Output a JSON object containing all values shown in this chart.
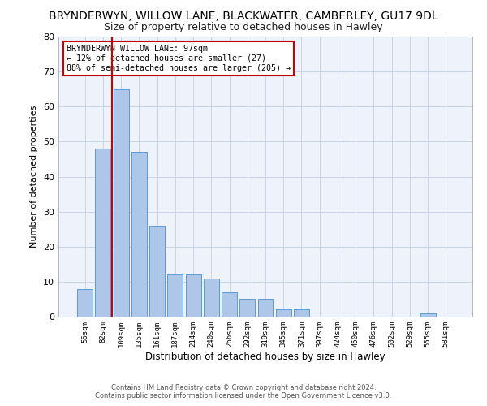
{
  "title": "BRYNDERWYN, WILLOW LANE, BLACKWATER, CAMBERLEY, GU17 9DL",
  "subtitle": "Size of property relative to detached houses in Hawley",
  "xlabel": "Distribution of detached houses by size in Hawley",
  "ylabel": "Number of detached properties",
  "bar_color": "#aec6e8",
  "bar_edge_color": "#5b9bd5",
  "grid_color": "#c8d4e8",
  "annotation_line_color": "#cc0000",
  "annotation_text_line1": "BRYNDERWYN WILLOW LANE: 97sqm",
  "annotation_text_line2": "← 12% of detached houses are smaller (27)",
  "annotation_text_line3": "88% of semi-detached houses are larger (205) →",
  "footer_line1": "Contains HM Land Registry data © Crown copyright and database right 2024.",
  "footer_line2": "Contains public sector information licensed under the Open Government Licence v3.0.",
  "categories": [
    "56sqm",
    "82sqm",
    "109sqm",
    "135sqm",
    "161sqm",
    "187sqm",
    "214sqm",
    "240sqm",
    "266sqm",
    "292sqm",
    "319sqm",
    "345sqm",
    "371sqm",
    "397sqm",
    "424sqm",
    "450sqm",
    "476sqm",
    "502sqm",
    "529sqm",
    "555sqm",
    "581sqm"
  ],
  "values": [
    8,
    48,
    65,
    47,
    26,
    12,
    12,
    11,
    7,
    5,
    5,
    2,
    2,
    0,
    0,
    0,
    0,
    0,
    0,
    1,
    0
  ],
  "ylim": [
    0,
    80
  ],
  "yticks": [
    0,
    10,
    20,
    30,
    40,
    50,
    60,
    70,
    80
  ],
  "plot_bg_color": "#eef2fa",
  "title_fontsize": 10,
  "subtitle_fontsize": 9,
  "red_line_x": 1.5
}
